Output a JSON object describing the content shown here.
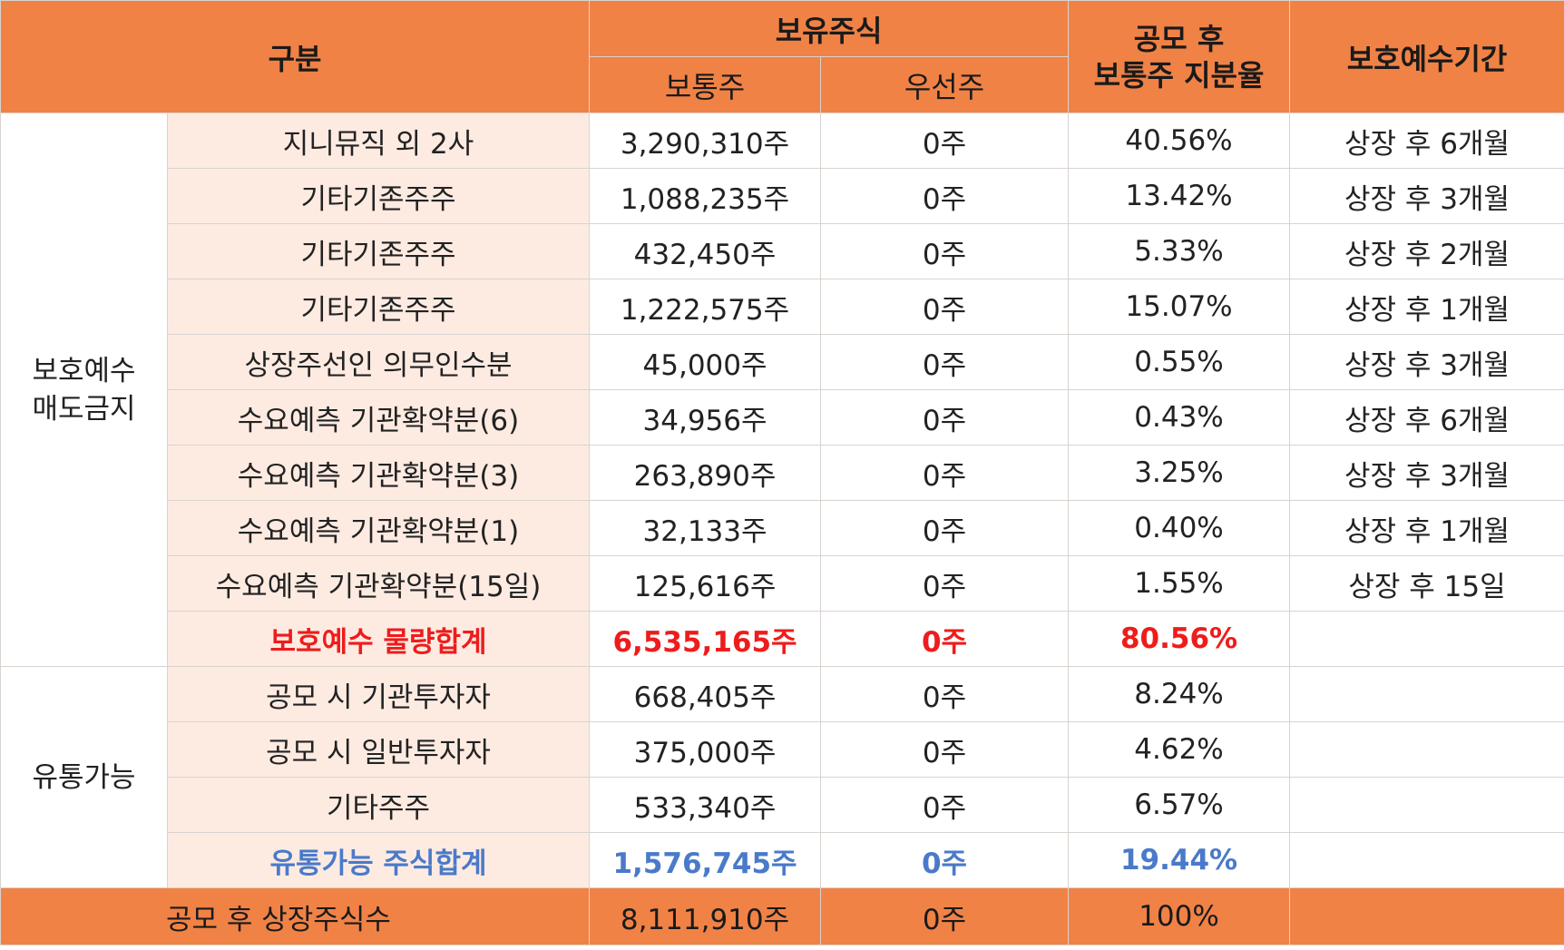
{
  "header": {
    "category": "구분",
    "holdings": "보유주식",
    "common": "보통주",
    "preferred": "우선주",
    "ratio": "공모 후\n보통주 지분율",
    "lockup_period": "보호예수기간"
  },
  "groups": {
    "locked": "보호예수\n매도금지",
    "tradable": "유통가능"
  },
  "locked_rows": [
    {
      "name": "지니뮤직 외 2사",
      "common": "3,290,310주",
      "preferred": "0주",
      "ratio": "40.56%",
      "period": "상장 후 6개월"
    },
    {
      "name": "기타기존주주",
      "common": "1,088,235주",
      "preferred": "0주",
      "ratio": "13.42%",
      "period": "상장 후 3개월"
    },
    {
      "name": "기타기존주주",
      "common": "432,450주",
      "preferred": "0주",
      "ratio": "5.33%",
      "period": "상장 후 2개월"
    },
    {
      "name": "기타기존주주",
      "common": "1,222,575주",
      "preferred": "0주",
      "ratio": "15.07%",
      "period": "상장 후 1개월"
    },
    {
      "name": "상장주선인 의무인수분",
      "common": "45,000주",
      "preferred": "0주",
      "ratio": "0.55%",
      "period": "상장 후 3개월"
    },
    {
      "name": "수요예측 기관확약분(6)",
      "common": "34,956주",
      "preferred": "0주",
      "ratio": "0.43%",
      "period": "상장 후 6개월"
    },
    {
      "name": "수요예측 기관확약분(3)",
      "common": "263,890주",
      "preferred": "0주",
      "ratio": "3.25%",
      "period": "상장 후 3개월"
    },
    {
      "name": "수요예측 기관확약분(1)",
      "common": "32,133주",
      "preferred": "0주",
      "ratio": "0.40%",
      "period": "상장 후 1개월"
    },
    {
      "name": "수요예측 기관확약분(15일)",
      "common": "125,616주",
      "preferred": "0주",
      "ratio": "1.55%",
      "period": "상장 후 15일"
    }
  ],
  "locked_total": {
    "name": "보호예수 물량합계",
    "common": "6,535,165주",
    "preferred": "0주",
    "ratio": "80.56%",
    "period": ""
  },
  "tradable_rows": [
    {
      "name": "공모 시 기관투자자",
      "common": "668,405주",
      "preferred": "0주",
      "ratio": "8.24%",
      "period": ""
    },
    {
      "name": "공모 시 일반투자자",
      "common": "375,000주",
      "preferred": "0주",
      "ratio": "4.62%",
      "period": ""
    },
    {
      "name": "기타주주",
      "common": "533,340주",
      "preferred": "0주",
      "ratio": "6.57%",
      "period": ""
    }
  ],
  "tradable_total": {
    "name": "유통가능 주식합계",
    "common": "1,576,745주",
    "preferred": "0주",
    "ratio": "19.44%",
    "period": ""
  },
  "grand_total": {
    "name": "공모 후 상장주식수",
    "common": "8,111,910주",
    "preferred": "0주",
    "ratio": "100%",
    "period": ""
  },
  "colors": {
    "header_bg": "#f08246",
    "label_bg": "#fdebe2",
    "red_total": "#ee1c1c",
    "blue_total": "#4a7ac9"
  }
}
